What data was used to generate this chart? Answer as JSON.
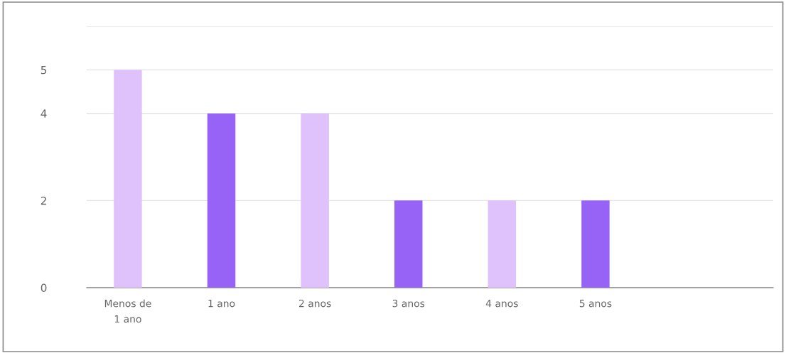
{
  "chart_data": {
    "type": "bar",
    "categories": [
      "Menos de\n1 ano",
      "1 ano",
      "2 anos",
      "3 anos",
      "4 anos",
      "5 anos"
    ],
    "values": [
      5,
      4,
      4,
      2,
      2,
      2
    ],
    "colors": [
      "#dfc2fb",
      "#9762f6",
      "#dfc2fb",
      "#9762f6",
      "#dfc2fb",
      "#9762f6"
    ],
    "ylim": [
      0,
      6
    ],
    "yticks": [
      0,
      2,
      4,
      5,
      {
        "value": 6,
        "label": null
      }
    ],
    "grid": "y",
    "legend": false
  }
}
